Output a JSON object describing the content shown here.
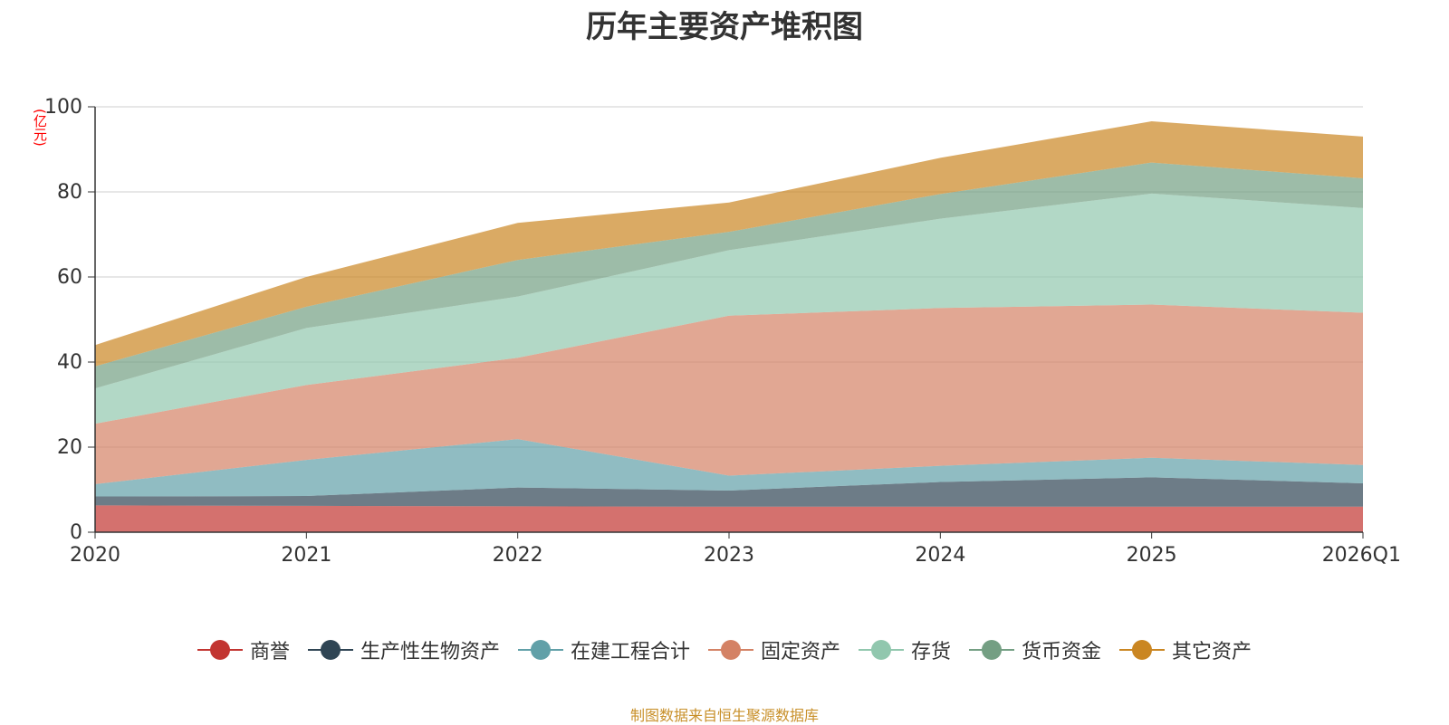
{
  "chart_data": {
    "type": "area",
    "stacked": true,
    "title": "历年主要资产堆积图",
    "ylabel": "(亿元)",
    "xlabel": "",
    "categories": [
      "2020",
      "2021",
      "2022",
      "2023",
      "2024",
      "2025",
      "2026Q1"
    ],
    "ylim": [
      0,
      100
    ],
    "yticks": [
      0,
      20,
      40,
      60,
      80,
      100
    ],
    "grid": true,
    "legend_position": "bottom",
    "series": [
      {
        "name": "商誉",
        "color": "#c23531",
        "values": [
          6.3,
          6.2,
          6.1,
          6.0,
          6.0,
          6.0,
          6.0
        ]
      },
      {
        "name": "生产性生物资产",
        "color": "#2f4554",
        "values": [
          2.1,
          2.3,
          4.4,
          3.8,
          5.8,
          6.9,
          5.5
        ]
      },
      {
        "name": "在建工程合计",
        "color": "#61a0a8",
        "values": [
          2.9,
          8.5,
          11.4,
          3.5,
          3.8,
          4.6,
          4.3
        ]
      },
      {
        "name": "固定资产",
        "color": "#d48265",
        "values": [
          14.2,
          17.6,
          19.1,
          37.6,
          37.1,
          36.0,
          35.8
        ]
      },
      {
        "name": "存货",
        "color": "#91c7ae",
        "values": [
          8.3,
          13.4,
          14.4,
          15.4,
          21.0,
          26.1,
          24.6
        ]
      },
      {
        "name": "货币资金",
        "color": "#749f83",
        "values": [
          5.2,
          5.0,
          8.6,
          4.3,
          5.8,
          7.3,
          7.0
        ]
      },
      {
        "name": "其它资产",
        "color": "#ca8622",
        "values": [
          5.0,
          7.0,
          8.7,
          6.9,
          8.5,
          9.7,
          9.8
        ]
      }
    ]
  },
  "source_note": "制图数据来自恒生聚源数据库"
}
